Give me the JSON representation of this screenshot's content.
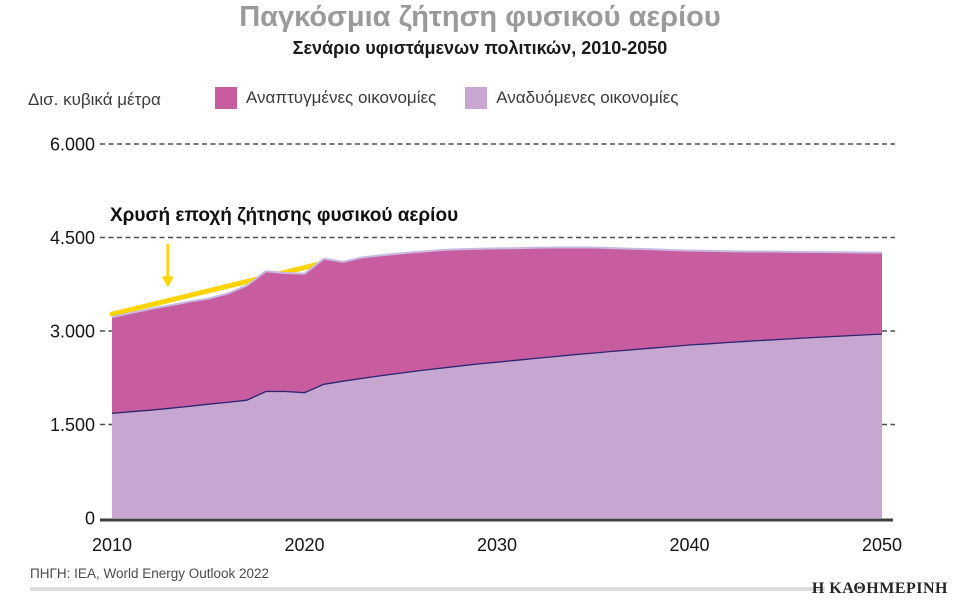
{
  "header": {
    "title": "Παγκόσμια ζήτηση φυσικού αερίου",
    "subtitle": "Σενάριο υφιστάμενων πολιτικών, 2010-2050"
  },
  "unit_label": "Δισ. κυβικά μέτρα",
  "legend": [
    {
      "label": "Αναπτυγμένες οικονομίες",
      "color": "#c75c9f"
    },
    {
      "label": "Αναδυόμενες οικονομίες",
      "color": "#c7a7d1"
    }
  ],
  "footer": {
    "source": "ΠΗΓΗ: IEA, World Energy Outlook 2022",
    "brand": "Η ΚΑΘΗΜΕΡΙΝΗ"
  },
  "chart_data": {
    "type": "area",
    "stacked": true,
    "title": "Παγκόσμια ζήτηση φυσικού αερίου",
    "subtitle": "Σενάριο υφιστάμενων πολιτικών, 2010-2050",
    "unit": "δισ. κυβικά μέτρα (bcm)",
    "xlabel": "",
    "ylabel": "Δισ. κυβικά μέτρα",
    "ylim": [
      0,
      6000
    ],
    "yticks": [
      0,
      1500,
      3000,
      4500,
      6000
    ],
    "ytick_labels": [
      "0",
      "1.500",
      "3.000",
      "4.500",
      "6.000"
    ],
    "xticks": [
      2010,
      2020,
      2030,
      2040,
      2050
    ],
    "grid": "horizontal-dashed",
    "legend_position": "top",
    "x": [
      2010,
      2011,
      2012,
      2013,
      2014,
      2015,
      2016,
      2017,
      2018,
      2019,
      2020,
      2021,
      2022,
      2023,
      2024,
      2025,
      2026,
      2027,
      2028,
      2029,
      2030,
      2031,
      2032,
      2033,
      2034,
      2035,
      2036,
      2037,
      2038,
      2039,
      2040,
      2041,
      2042,
      2043,
      2044,
      2045,
      2046,
      2047,
      2048,
      2049,
      2050
    ],
    "series": [
      {
        "name": "Αναδυόμενες οικονομίες",
        "color": "#c7a7d1",
        "edge_color": "#2c2474",
        "values": [
          1680,
          1705,
          1730,
          1760,
          1790,
          1825,
          1855,
          1890,
          2030,
          2030,
          2010,
          2145,
          2195,
          2240,
          2285,
          2325,
          2365,
          2400,
          2435,
          2470,
          2500,
          2530,
          2560,
          2590,
          2620,
          2645,
          2672,
          2698,
          2724,
          2750,
          2775,
          2795,
          2815,
          2835,
          2853,
          2870,
          2887,
          2904,
          2920,
          2936,
          2950
        ]
      },
      {
        "name": "Αναπτυγμένες οικονομίες",
        "color": "#c75c9f",
        "edge_color": "#c9b8e4",
        "values": [
          1545,
          1585,
          1625,
          1650,
          1680,
          1695,
          1745,
          1840,
          1930,
          1900,
          1910,
          2015,
          1915,
          1940,
          1930,
          1920,
          1905,
          1895,
          1875,
          1850,
          1825,
          1800,
          1775,
          1750,
          1720,
          1695,
          1658,
          1622,
          1586,
          1550,
          1515,
          1490,
          1465,
          1440,
          1422,
          1400,
          1381,
          1361,
          1342,
          1324,
          1308
        ]
      }
    ],
    "annotation": {
      "text": "Χρυσή εποχή ζήτησης φυσικού αερίου",
      "trend_line": {
        "x1": 2010,
        "y1": 3270,
        "x2": 2021.1,
        "y2": 4100,
        "color": "#ffd400"
      },
      "arrow": {
        "x": 2012.9,
        "y_from": 4400,
        "y_to": 3700,
        "color": "#ffd400"
      }
    }
  }
}
